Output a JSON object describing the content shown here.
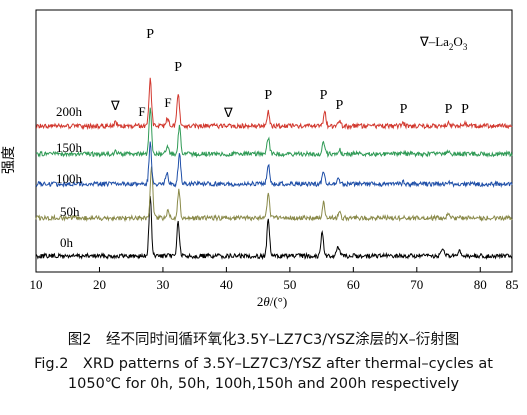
{
  "chart_data": {
    "type": "line",
    "xlabel_prefix": "2",
    "xlabel_theta": "θ",
    "xlabel_unit": "/(°)",
    "ylabel": "强度",
    "legend": {
      "symbol": "∇–",
      "formula": "La",
      "sub1": "2",
      "mid": "O",
      "sub2": "3"
    },
    "xlim": [
      10,
      85
    ],
    "xticks": [
      10,
      20,
      30,
      40,
      50,
      60,
      70,
      80,
      85
    ],
    "series": [
      {
        "name": "0h",
        "color": "#000000",
        "baseline": 0.0,
        "peaks": [
          [
            28.0,
            7.0
          ],
          [
            32.4,
            4.1
          ],
          [
            46.6,
            4.4
          ],
          [
            55.1,
            3.0
          ],
          [
            57.6,
            1.2
          ],
          [
            74.1,
            1.0
          ],
          [
            76.7,
            0.5
          ]
        ]
      },
      {
        "name": "50h",
        "color": "#8a8a4a",
        "baseline": 1.0,
        "peaks": [
          [
            28.2,
            6.0
          ],
          [
            30.8,
            1.0
          ],
          [
            32.5,
            3.3
          ],
          [
            46.6,
            3.0
          ],
          [
            55.3,
            1.9
          ],
          [
            57.8,
            0.8
          ],
          [
            68.0,
            0.3
          ],
          [
            75.0,
            0.5
          ]
        ]
      },
      {
        "name": "100h",
        "color": "#1f4fa8",
        "baseline": 2.0,
        "peaks": [
          [
            28.0,
            5.0
          ],
          [
            30.6,
            1.4
          ],
          [
            32.6,
            3.6
          ],
          [
            46.6,
            2.4
          ],
          [
            55.3,
            1.3
          ],
          [
            57.6,
            0.7
          ],
          [
            67.9,
            0.3
          ],
          [
            75.0,
            0.4
          ]
        ]
      },
      {
        "name": "150h",
        "color": "#2f9a55",
        "baseline": 3.0,
        "peaks": [
          [
            22.5,
            0.4
          ],
          [
            28.0,
            5.5
          ],
          [
            30.7,
            1.0
          ],
          [
            32.6,
            3.3
          ],
          [
            46.6,
            2.0
          ],
          [
            55.3,
            1.5
          ],
          [
            57.8,
            0.6
          ],
          [
            67.9,
            0.3
          ],
          [
            75.0,
            0.4
          ]
        ]
      },
      {
        "name": "200h",
        "color": "#d2382e",
        "baseline": 4.0,
        "peaks": [
          [
            22.5,
            0.5
          ],
          [
            28.0,
            5.6
          ],
          [
            30.7,
            0.9
          ],
          [
            32.4,
            3.9
          ],
          [
            40.3,
            0.2
          ],
          [
            46.6,
            1.7
          ],
          [
            55.5,
            1.6
          ],
          [
            57.8,
            0.7
          ],
          [
            67.9,
            0.3
          ],
          [
            75.0,
            0.5
          ],
          [
            77.6,
            0.3
          ]
        ]
      }
    ],
    "annotations": [
      {
        "text": "P",
        "x": 28.0
      },
      {
        "text": "P",
        "x": 32.4
      },
      {
        "text": "P",
        "x": 46.6
      },
      {
        "text": "P",
        "x": 55.3
      },
      {
        "text": "P",
        "x": 57.8
      },
      {
        "text": "P",
        "x": 67.9
      },
      {
        "text": "P",
        "x": 75.0
      },
      {
        "text": "P",
        "x": 77.6
      },
      {
        "text": "F",
        "x": 26.7
      },
      {
        "text": "F",
        "x": 30.8
      },
      {
        "text": "∇",
        "x": 22.5
      },
      {
        "text": "∇",
        "x": 40.3
      }
    ]
  },
  "caption": {
    "cn": "图2　经不同时间循环氧化3.5Y–LZ7C3/YSZ涂层的X–衍射图",
    "en1": "Fig.2　XRD patterns of 3.5Y–LZ7C3/YSZ after thermal–cycles at",
    "en2": "1050℃ for 0h, 50h, 100h,150h and 200h respectively"
  }
}
